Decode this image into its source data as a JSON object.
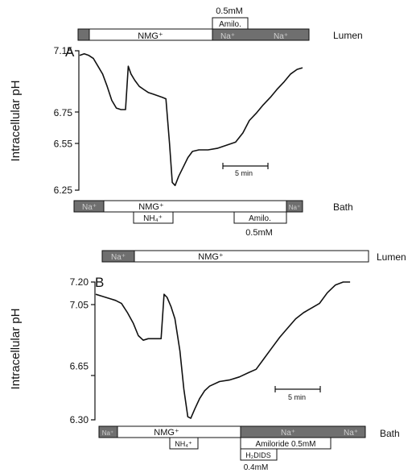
{
  "chart_data": [
    {
      "type": "line",
      "panel_label": "A",
      "ylabel": "Intracellular pH",
      "y_ticks": [
        7.15,
        6.75,
        6.55,
        6.25
      ],
      "ylim": [
        6.25,
        7.15
      ],
      "scale_bar": "5 min",
      "x_unit": "min",
      "series": [
        {
          "values": [
            [
              0.0,
              7.12
            ],
            [
              0.5,
              7.13
            ],
            [
              1.0,
              7.12
            ],
            [
              1.5,
              7.1
            ],
            [
              2.0,
              7.05
            ],
            [
              2.5,
              7.0
            ],
            [
              3.0,
              6.92
            ],
            [
              3.5,
              6.83
            ],
            [
              4.0,
              6.78
            ],
            [
              4.5,
              6.77
            ],
            [
              5.0,
              6.77
            ],
            [
              5.3,
              7.05
            ],
            [
              5.6,
              7.0
            ],
            [
              6.0,
              6.96
            ],
            [
              6.5,
              6.92
            ],
            [
              7.0,
              6.9
            ],
            [
              7.5,
              6.88
            ],
            [
              8.0,
              6.87
            ],
            [
              8.5,
              6.86
            ],
            [
              9.0,
              6.85
            ],
            [
              9.4,
              6.84
            ],
            [
              9.8,
              6.55
            ],
            [
              10.1,
              6.3
            ],
            [
              10.4,
              6.28
            ],
            [
              10.8,
              6.34
            ],
            [
              11.3,
              6.4
            ],
            [
              11.8,
              6.46
            ],
            [
              12.3,
              6.5
            ],
            [
              13.0,
              6.51
            ],
            [
              14.0,
              6.51
            ],
            [
              15.0,
              6.52
            ],
            [
              16.0,
              6.54
            ],
            [
              17.0,
              6.56
            ],
            [
              17.8,
              6.62
            ],
            [
              18.5,
              6.7
            ],
            [
              19.3,
              6.75
            ],
            [
              20.0,
              6.8
            ],
            [
              20.8,
              6.85
            ],
            [
              21.5,
              6.9
            ],
            [
              22.3,
              6.95
            ],
            [
              23.0,
              7.0
            ],
            [
              23.7,
              7.03
            ],
            [
              24.3,
              7.04
            ]
          ]
        }
      ]
    },
    {
      "type": "line",
      "panel_label": "B",
      "ylabel": "Intracellular pH",
      "y_ticks": [
        7.2,
        7.05,
        6.65,
        6.3
      ],
      "ylim": [
        6.3,
        7.2
      ],
      "scale_bar": "5 min",
      "x_unit": "min",
      "series": [
        {
          "values": [
            [
              0.0,
              7.12
            ],
            [
              0.5,
              7.11
            ],
            [
              1.0,
              7.1
            ],
            [
              1.5,
              7.09
            ],
            [
              2.0,
              7.08
            ],
            [
              2.6,
              7.06
            ],
            [
              3.2,
              7.0
            ],
            [
              3.8,
              6.93
            ],
            [
              4.3,
              6.85
            ],
            [
              4.8,
              6.82
            ],
            [
              5.3,
              6.83
            ],
            [
              6.2,
              6.83
            ],
            [
              6.6,
              6.83
            ],
            [
              6.9,
              7.12
            ],
            [
              7.2,
              7.1
            ],
            [
              7.6,
              7.04
            ],
            [
              8.0,
              6.96
            ],
            [
              8.5,
              6.75
            ],
            [
              8.9,
              6.5
            ],
            [
              9.3,
              6.32
            ],
            [
              9.6,
              6.31
            ],
            [
              10.0,
              6.37
            ],
            [
              10.5,
              6.44
            ],
            [
              11.0,
              6.49
            ],
            [
              11.5,
              6.52
            ],
            [
              12.5,
              6.55
            ],
            [
              13.5,
              6.56
            ],
            [
              14.5,
              6.58
            ],
            [
              15.5,
              6.61
            ],
            [
              16.2,
              6.63
            ],
            [
              17.0,
              6.7
            ],
            [
              17.8,
              6.77
            ],
            [
              18.6,
              6.84
            ],
            [
              19.4,
              6.9
            ],
            [
              20.2,
              6.96
            ],
            [
              21.0,
              7.0
            ],
            [
              21.8,
              7.03
            ],
            [
              22.6,
              7.06
            ],
            [
              23.4,
              7.13
            ],
            [
              24.2,
              7.18
            ],
            [
              25.0,
              7.2
            ],
            [
              25.7,
              7.2
            ]
          ]
        }
      ]
    }
  ],
  "panel_a": {
    "lumen_label": "Lumen",
    "bath_label": "Bath",
    "lumen_bar": [
      "NMG⁺",
      "Na⁺",
      "Na⁺"
    ],
    "lumen_addition": {
      "label": "Amilo.",
      "conc": "0.5mM"
    },
    "bath_bar": [
      "Na⁺",
      "NMG⁺",
      "Na⁺"
    ],
    "bath_additions": [
      {
        "label": "NH₄⁺"
      },
      {
        "label": "Amilo.",
        "conc": "0.5mM"
      }
    ]
  },
  "panel_b": {
    "lumen_label": "Lumen",
    "bath_label": "Bath",
    "lumen_bar": [
      "Na⁺",
      "NMG⁺"
    ],
    "bath_bar": [
      "Na⁺",
      "NMG⁺",
      "Na⁺",
      "Na⁺"
    ],
    "bath_additions": [
      {
        "label": "NH₄⁺"
      },
      {
        "label": "Amiloride 0.5mM"
      },
      {
        "label": "H₂DIDS",
        "conc": "0.4mM"
      }
    ]
  },
  "colors": {
    "dark_segment": "#6f6f6f",
    "light_segment": "#ffffff",
    "trace": "#111111"
  }
}
